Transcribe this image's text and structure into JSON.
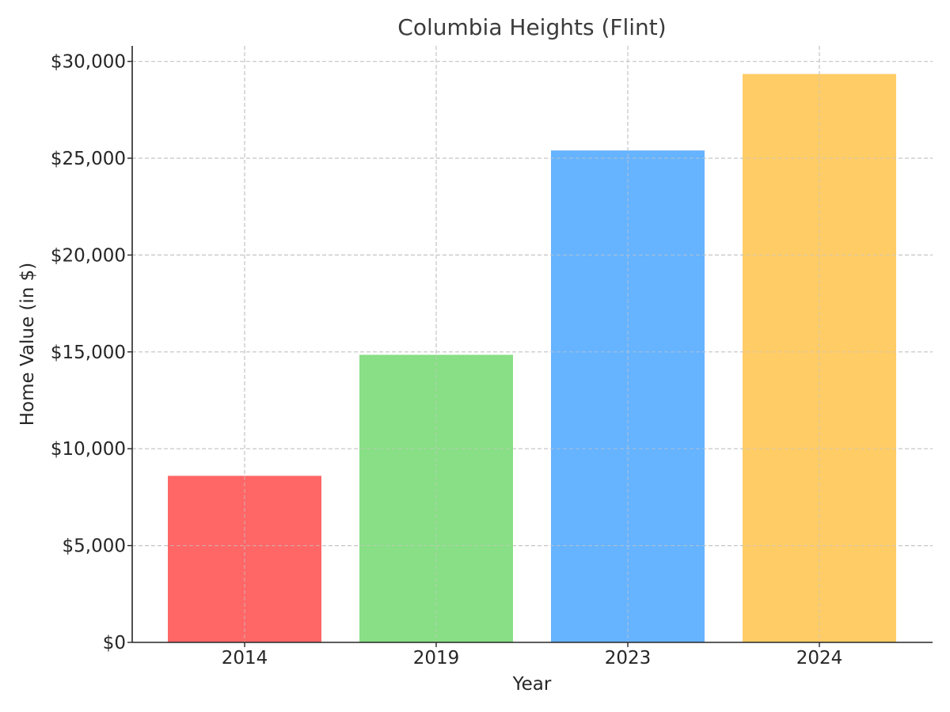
{
  "chart_data": {
    "type": "bar",
    "title": "Columbia Heights (Flint)",
    "xlabel": "Year",
    "ylabel": "Home Value (in $)",
    "categories": [
      "2014",
      "2019",
      "2023",
      "2024"
    ],
    "values": [
      8600,
      14850,
      25400,
      29350
    ],
    "colors": [
      "#ff6666",
      "#88df85",
      "#66b3ff",
      "#ffcc66"
    ],
    "ylim": [
      0,
      30800
    ],
    "yticks": [
      0,
      5000,
      10000,
      15000,
      20000,
      25000,
      30000
    ],
    "ytick_labels": [
      "$0",
      "$5,000",
      "$10,000",
      "$15,000",
      "$20,000",
      "$25,000",
      "$30,000"
    ],
    "grid": true,
    "legend": "none"
  }
}
